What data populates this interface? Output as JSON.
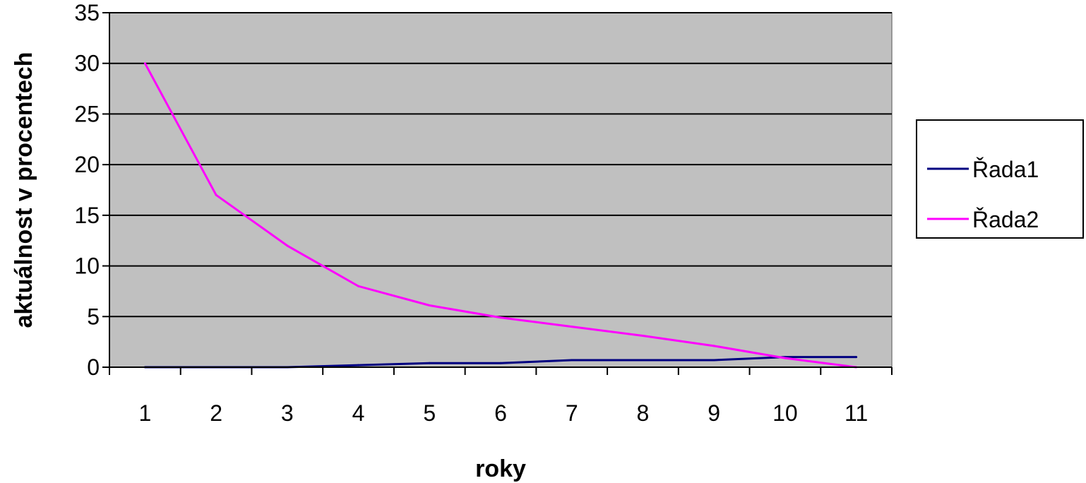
{
  "chart_data": {
    "type": "line",
    "title": "",
    "xlabel": "roky",
    "ylabel": "aktuálnost v procentech",
    "categories": [
      "1",
      "2",
      "3",
      "4",
      "5",
      "6",
      "7",
      "8",
      "9",
      "10",
      "11"
    ],
    "ylim": [
      0,
      35
    ],
    "yticks": [
      "0",
      "5",
      "10",
      "15",
      "20",
      "25",
      "30",
      "35"
    ],
    "grid": true,
    "legend_position": "right",
    "plot_background": "#c0c0c0",
    "series": [
      {
        "name": "Řada1",
        "color": "#000080",
        "values": [
          0,
          0,
          0,
          0.2,
          0.4,
          0.4,
          0.7,
          0.7,
          0.7,
          1,
          1
        ]
      },
      {
        "name": "Řada2",
        "color": "#ff00ff",
        "values": [
          30,
          17,
          12,
          8,
          6.1,
          4.9,
          4,
          3.1,
          2.1,
          0.9,
          0
        ]
      }
    ]
  }
}
